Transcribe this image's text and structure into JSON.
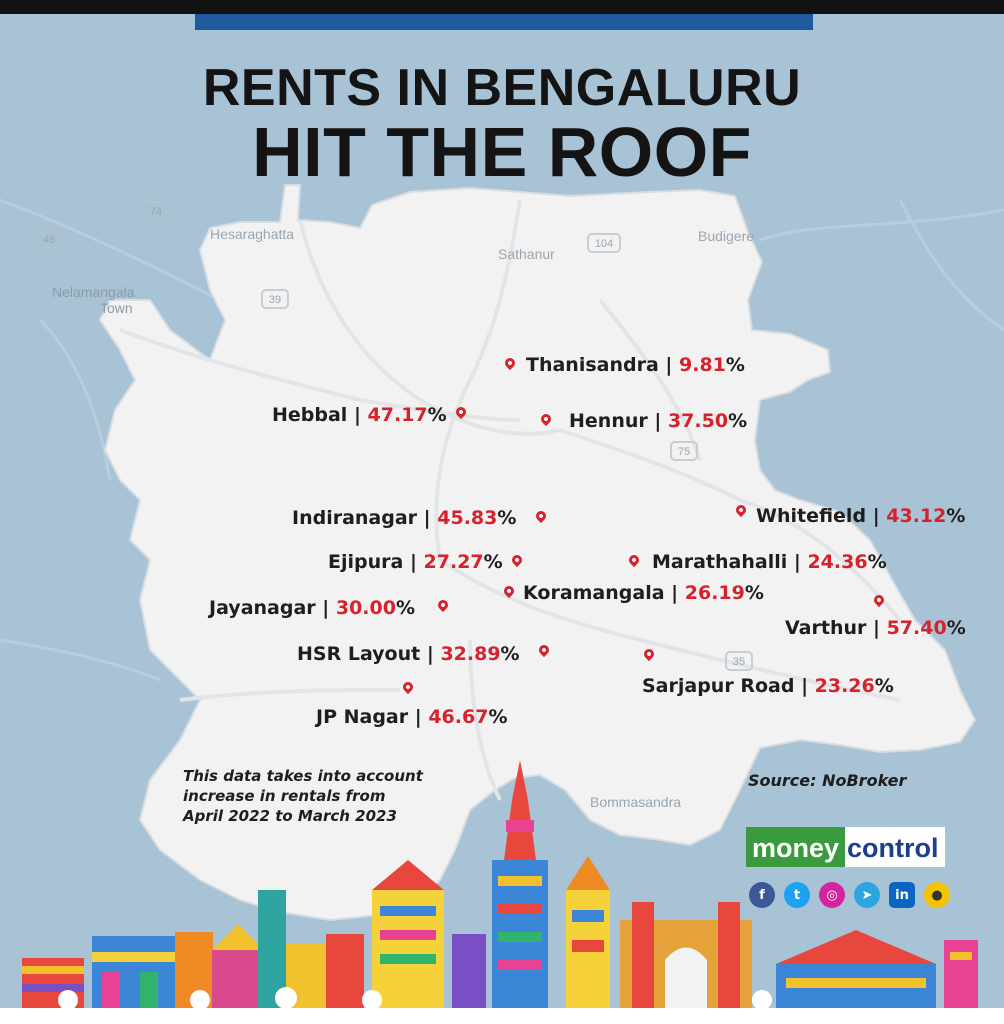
{
  "header": {
    "line1": "RENTS IN BENGALURU",
    "line2": "HIT THE ROOF"
  },
  "places": [
    {
      "name": "Thanisandra",
      "value": "9.81",
      "unit": "%",
      "rent_increase_pct": 9.81
    },
    {
      "name": "Hebbal",
      "value": "47.17",
      "unit": "%",
      "rent_increase_pct": 47.17
    },
    {
      "name": "Hennur",
      "value": "37.50",
      "unit": "%",
      "rent_increase_pct": 37.5
    },
    {
      "name": "Indiranagar",
      "value": "45.83",
      "unit": "%",
      "rent_increase_pct": 45.83
    },
    {
      "name": "Whitefield",
      "value": "43.12",
      "unit": "%",
      "rent_increase_pct": 43.12
    },
    {
      "name": "Ejipura",
      "value": "27.27",
      "unit": "%",
      "rent_increase_pct": 27.27
    },
    {
      "name": "Marathahalli",
      "value": "24.36",
      "unit": "%",
      "rent_increase_pct": 24.36
    },
    {
      "name": "Koramangala",
      "value": "26.19",
      "unit": "%",
      "rent_increase_pct": 26.19
    },
    {
      "name": "Jayanagar",
      "value": "30.00",
      "unit": "%",
      "rent_increase_pct": 30.0
    },
    {
      "name": "Varthur",
      "value": "57.40",
      "unit": "%",
      "rent_increase_pct": 57.4
    },
    {
      "name": "HSR Layout",
      "value": "32.89",
      "unit": "%",
      "rent_increase_pct": 32.89
    },
    {
      "name": "Sarjapur Road",
      "value": "23.26",
      "unit": "%",
      "rent_increase_pct": 23.26
    },
    {
      "name": "JP Nagar",
      "value": "46.67",
      "unit": "%",
      "rent_increase_pct": 46.67
    }
  ],
  "separator": "|",
  "basemap_labels": {
    "hesaraghatta": "Hesaraghatta",
    "sathanur": "Sathanur",
    "budigere": "Budigere",
    "nelamangala": "Nelamangala",
    "town": "Town",
    "bommasandra": "Bommasandra",
    "hwy_74": "74",
    "hwy_104": "104",
    "hwy_39": "39",
    "hwy_35": "35",
    "hwy_48": "48",
    "hwy_75": "75"
  },
  "note": {
    "line1": "This data takes into account",
    "line2": "increase in rentals from",
    "line3": "April 2022 to March 2023"
  },
  "source": "Source: NoBroker",
  "brand": {
    "part1": "money",
    "part2": "control",
    "green": "#3a9a3e",
    "blue": "#1d3f8c"
  },
  "social_icons": [
    "facebook-icon",
    "twitter-icon",
    "instagram-icon",
    "telegram-icon",
    "linkedin-icon",
    "koo-icon"
  ],
  "colors": {
    "sea": "#a9c3d6",
    "land": "#f2f2f2",
    "highlight": "#d6222c",
    "band": "#1f5a9e"
  }
}
